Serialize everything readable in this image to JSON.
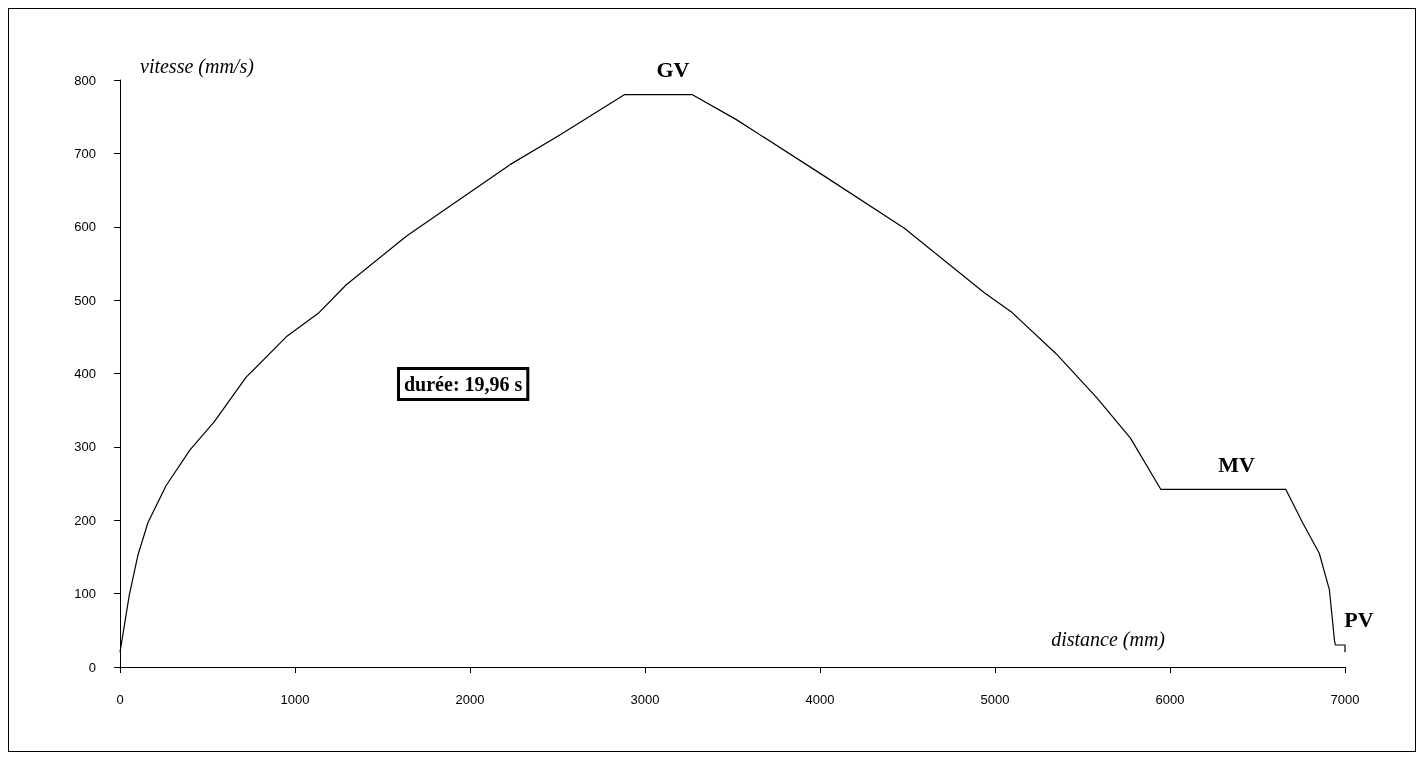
{
  "chart_data": {
    "type": "line",
    "xlabel": "distance (mm)",
    "ylabel": "vitesse (mm/s)",
    "x": [
      0,
      53,
      103,
      160,
      263,
      400,
      538,
      721,
      950,
      1133,
      1293,
      1636,
      1934,
      2231,
      2506,
      2882,
      3271,
      3522,
      4025,
      4482,
      4939,
      5098,
      5349,
      5581,
      5774,
      5948,
      6662,
      6757,
      6853,
      6911,
      6940,
      6945,
      7000,
      7000
    ],
    "series": [
      {
        "color": "#000000",
        "values": [
          20,
          98,
          153,
          197,
          247,
          296,
          334,
          395,
          450,
          482,
          521,
          587,
          636,
          685,
          724,
          780,
          780,
          746,
          669,
          598,
          510,
          483,
          427,
          367,
          312,
          242,
          242,
          197,
          155,
          105,
          36,
          30,
          30,
          20
        ]
      }
    ],
    "xlim": [
      0,
      7000
    ],
    "xticks": [
      0,
      1000,
      2000,
      3000,
      4000,
      5000,
      6000,
      7000
    ],
    "ylim": [
      0,
      800
    ],
    "yticks": [
      0,
      100,
      200,
      300,
      400,
      500,
      600,
      700,
      800
    ],
    "grid": false,
    "marker": "none",
    "line_style": "solid",
    "annotations": [
      {
        "text": "GV",
        "x": 3080,
        "y": 780
      },
      {
        "text": "MV",
        "x": 6300,
        "y": 242
      },
      {
        "text": "PV",
        "x": 7000,
        "y": 30
      },
      "durée: 19,96 s"
    ]
  }
}
